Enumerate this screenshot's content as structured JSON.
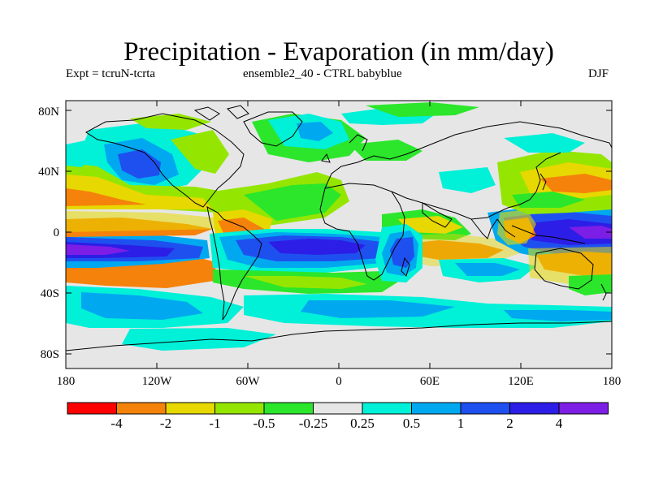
{
  "title": "Precipitation - Evaporation (in mm/day)",
  "experiment": "Expt = tcruN-tcrta",
  "ensemble": "ensemble2_40 - CTRL babyblue",
  "season": "DJF",
  "axes": {
    "lat_ticks": [
      "80N",
      "40N",
      "0",
      "40S",
      "80S"
    ],
    "lon_ticks": [
      "180",
      "120W",
      "60W",
      "0",
      "60E",
      "120E",
      "180"
    ]
  },
  "colorbar": {
    "colors": [
      "#ff0000",
      "#f5820a",
      "#e6d800",
      "#94e600",
      "#2be62b",
      "#e6e6e6",
      "#00f0d8",
      "#00a8f0",
      "#1e50f0",
      "#2c1ee6",
      "#7d1ee6"
    ],
    "labels": [
      "-4",
      "-2",
      "-1",
      "-0.5",
      "-0.25",
      "0.25",
      "0.5",
      "1",
      "2",
      "4"
    ]
  },
  "palette": {
    "ocean_neutral": "#e6e6e6",
    "coast": "#000000"
  }
}
